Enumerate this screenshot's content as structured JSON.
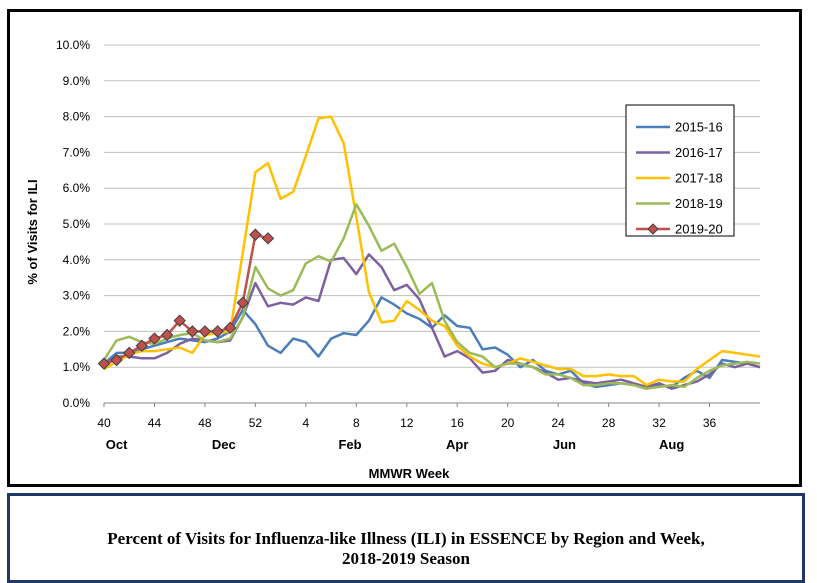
{
  "chart_data": {
    "type": "line",
    "xlabel": "MMWR Week",
    "ylabel": "% of Visits for ILI",
    "ylim": [
      0,
      10
    ],
    "y_ticks": [
      "0.0%",
      "1.0%",
      "2.0%",
      "3.0%",
      "4.0%",
      "5.0%",
      "6.0%",
      "7.0%",
      "8.0%",
      "9.0%",
      "10.0%"
    ],
    "x_tick_labels": [
      "40",
      "44",
      "48",
      "52",
      "4",
      "8",
      "12",
      "16",
      "20",
      "24",
      "28",
      "32",
      "36"
    ],
    "month_labels": [
      "Oct",
      "Dec",
      "Feb",
      "Apr",
      "Jun",
      "Aug"
    ],
    "grid": "horizontal",
    "legend_position": "right",
    "series": [
      {
        "name": "2015-16",
        "color": "#4a7ebb",
        "marker": "none",
        "values": [
          1.1,
          1.4,
          1.4,
          1.5,
          1.6,
          1.7,
          1.8,
          1.75,
          1.7,
          1.8,
          2.0,
          2.6,
          2.2,
          1.6,
          1.4,
          1.8,
          1.7,
          1.3,
          1.8,
          1.95,
          1.9,
          2.3,
          2.95,
          2.75,
          2.5,
          2.35,
          2.1,
          2.45,
          2.15,
          2.1,
          1.5,
          1.55,
          1.35,
          1.0,
          1.2,
          0.9,
          0.8,
          0.9,
          0.55,
          0.45,
          0.5,
          0.55,
          0.5,
          0.4,
          0.5,
          0.45,
          0.7,
          0.9,
          0.7,
          1.2,
          1.15,
          1.1,
          1.0
        ]
      },
      {
        "name": "2016-17",
        "color": "#7d60a0",
        "marker": "none",
        "values": [
          1.05,
          1.3,
          1.3,
          1.25,
          1.25,
          1.4,
          1.65,
          1.8,
          1.75,
          1.7,
          1.75,
          2.4,
          3.35,
          2.7,
          2.8,
          2.75,
          2.95,
          2.85,
          4.0,
          4.05,
          3.6,
          4.15,
          3.8,
          3.15,
          3.3,
          2.9,
          2.1,
          1.3,
          1.45,
          1.25,
          0.85,
          0.9,
          1.2,
          1.1,
          1.0,
          0.85,
          0.65,
          0.7,
          0.6,
          0.55,
          0.6,
          0.65,
          0.55,
          0.45,
          0.55,
          0.4,
          0.5,
          0.6,
          0.8,
          1.1,
          1.0,
          1.1,
          1.0
        ]
      },
      {
        "name": "2017-18",
        "color": "#ffc000",
        "marker": "none",
        "values": [
          0.95,
          1.15,
          1.35,
          1.45,
          1.45,
          1.5,
          1.55,
          1.4,
          1.9,
          1.95,
          2.0,
          4.2,
          6.45,
          6.7,
          5.7,
          5.9,
          6.9,
          7.95,
          8.0,
          7.25,
          5.2,
          3.1,
          2.25,
          2.3,
          2.85,
          2.6,
          2.3,
          2.15,
          1.6,
          1.3,
          1.1,
          1.0,
          1.1,
          1.25,
          1.15,
          1.05,
          0.95,
          0.95,
          0.75,
          0.75,
          0.8,
          0.75,
          0.75,
          0.5,
          0.65,
          0.6,
          0.6,
          0.95,
          1.2,
          1.45,
          1.4,
          1.35,
          1.3
        ]
      },
      {
        "name": "2018-19",
        "color": "#9bbb59",
        "marker": "none",
        "values": [
          1.2,
          1.75,
          1.85,
          1.7,
          1.65,
          1.8,
          1.9,
          1.95,
          1.75,
          1.7,
          1.8,
          2.4,
          3.8,
          3.2,
          3.0,
          3.15,
          3.9,
          4.1,
          3.95,
          4.6,
          5.55,
          4.95,
          4.25,
          4.45,
          3.8,
          3.05,
          3.35,
          2.3,
          1.7,
          1.4,
          1.3,
          1.0,
          1.1,
          1.1,
          1.0,
          0.8,
          0.8,
          0.7,
          0.5,
          0.5,
          0.55,
          0.55,
          0.5,
          0.4,
          0.45,
          0.5,
          0.45,
          0.7,
          0.9,
          1.05,
          1.1,
          1.15,
          1.1
        ]
      },
      {
        "name": "2019-20",
        "color": "#c0504d",
        "marker": "diamond",
        "marker_fill": "#c0504d",
        "marker_edge": "#404040",
        "values": [
          1.1,
          1.2,
          1.4,
          1.6,
          1.8,
          1.9,
          2.3,
          2.0,
          2.0,
          2.0,
          2.1,
          2.8,
          4.7,
          4.6
        ]
      }
    ]
  },
  "caption": {
    "line1": "Percent of Visits for Influenza-like Illness (ILI) in ESSENCE by Region and Week,",
    "line2": "2018-2019 Season"
  }
}
